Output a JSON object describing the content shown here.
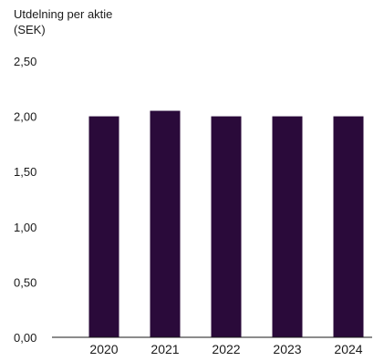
{
  "chart_data": {
    "type": "bar",
    "title_lines": [
      "Utdelning per aktie",
      "(SEK)"
    ],
    "categories": [
      "2020",
      "2021",
      "2022",
      "2023",
      "2024"
    ],
    "values": [
      2.0,
      2.05,
      2.0,
      2.0,
      2.0
    ],
    "ylim": [
      0,
      2.5
    ],
    "yticks": [
      "0,00",
      "0,50",
      "1,00",
      "1,50",
      "2,00",
      "2,50"
    ],
    "xlabel": "",
    "ylabel": "",
    "grid": false,
    "bar_color": "#2a0a3a",
    "axis_color": "#1a1a1a"
  }
}
